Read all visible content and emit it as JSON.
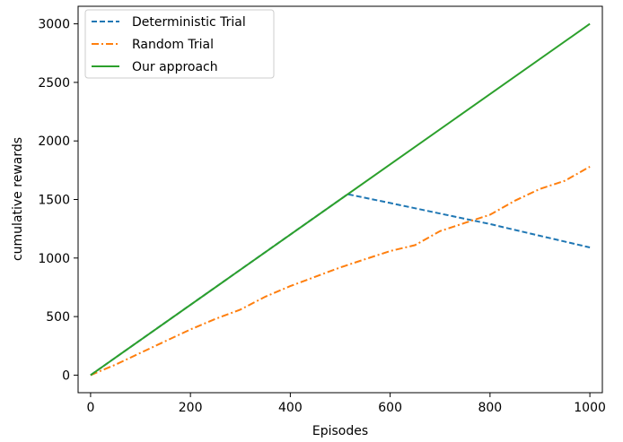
{
  "chart_data": {
    "type": "line",
    "title": "",
    "xlabel": "Episodes",
    "ylabel": "cumulative rewards",
    "xlim": [
      -25,
      1025
    ],
    "ylim": [
      -150,
      3150
    ],
    "xticks": [
      0,
      200,
      400,
      600,
      800,
      1000
    ],
    "yticks": [
      0,
      500,
      1000,
      1500,
      2000,
      2500,
      3000
    ],
    "xtick_labels": [
      "0",
      "200",
      "400",
      "600",
      "800",
      "1000"
    ],
    "ytick_labels": [
      "0",
      "500",
      "1000",
      "1500",
      "2000",
      "2500",
      "3000"
    ],
    "grid": false,
    "legend_position": "upper-left",
    "series": [
      {
        "name": "Deterministic Trial",
        "color": "#1f77b4",
        "style": "dashed",
        "x": [
          0,
          515,
          600,
          700,
          800,
          900,
          1000
        ],
        "y": [
          0,
          1545,
          1470,
          1380,
          1290,
          1190,
          1090
        ]
      },
      {
        "name": "Random Trial",
        "color": "#ff7f0e",
        "style": "dashdot",
        "x": [
          0,
          50,
          100,
          150,
          200,
          250,
          300,
          350,
          400,
          450,
          500,
          550,
          600,
          650,
          700,
          750,
          800,
          850,
          900,
          950,
          1000
        ],
        "y": [
          0,
          90,
          190,
          290,
          390,
          480,
          560,
          670,
          760,
          840,
          920,
          990,
          1060,
          1110,
          1230,
          1300,
          1370,
          1490,
          1590,
          1660,
          1780
        ]
      },
      {
        "name": "Our approach",
        "color": "#2ca02c",
        "style": "solid",
        "x": [
          0,
          1000
        ],
        "y": [
          0,
          3000
        ]
      }
    ]
  }
}
